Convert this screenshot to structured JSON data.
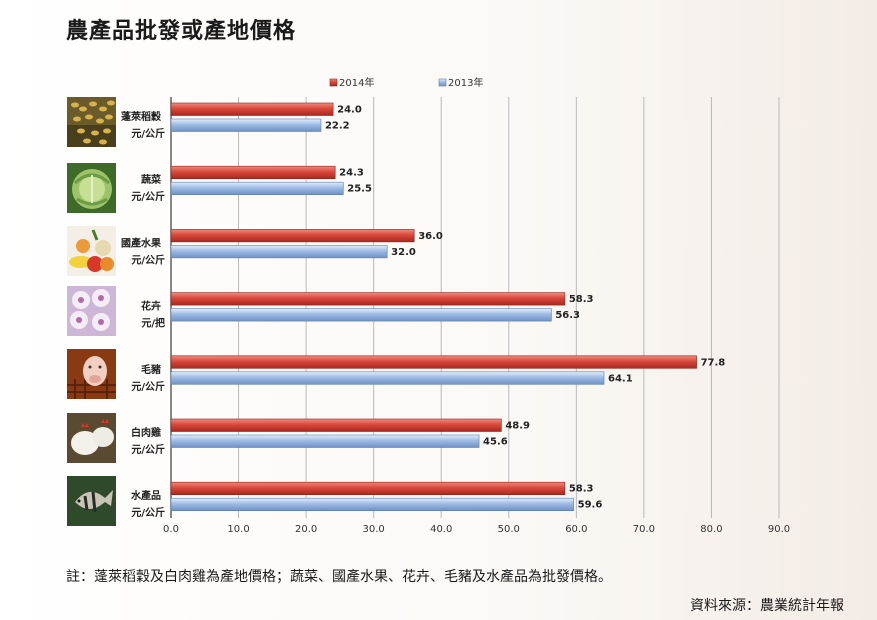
{
  "page": {
    "title": "農產品批發或產地價格",
    "note": "註：蓬萊稻穀及白肉雞為產地價格；蔬菜、國產水果、花卉、毛豬及水產品為批發價格。",
    "source": "資料來源：農業統計年報"
  },
  "chart_data": {
    "type": "bar",
    "orientation": "horizontal",
    "title": "農產品批發或產地價格",
    "categories": [
      {
        "name": "蓬萊稻穀",
        "unit": "元/公斤",
        "icon": "rice-grain-photo"
      },
      {
        "name": "蔬菜",
        "unit": "元/公斤",
        "icon": "cabbage-photo"
      },
      {
        "name": "國產水果",
        "unit": "元/公斤",
        "icon": "fruit-photo"
      },
      {
        "name": "花卉",
        "unit": "元/把",
        "icon": "orchid-photo"
      },
      {
        "name": "毛豬",
        "unit": "元/公斤",
        "icon": "pig-photo"
      },
      {
        "name": "白肉雞",
        "unit": "元/公斤",
        "icon": "chicken-photo"
      },
      {
        "name": "水產品",
        "unit": "元/公斤",
        "icon": "fish-photo"
      }
    ],
    "series": [
      {
        "name": "2014年",
        "color": "#d9483b",
        "values": [
          24.0,
          24.3,
          36.0,
          58.3,
          77.8,
          48.9,
          58.3
        ]
      },
      {
        "name": "2013年",
        "color": "#9dbbe4",
        "values": [
          22.2,
          25.5,
          32.0,
          56.3,
          64.1,
          45.6,
          59.6
        ]
      }
    ],
    "xlim": [
      0,
      90
    ],
    "xticks": [
      "0.0",
      "10.0",
      "20.0",
      "30.0",
      "40.0",
      "50.0",
      "60.0",
      "70.0",
      "80.0",
      "90.0"
    ],
    "grid": true,
    "legend": "top-center"
  }
}
